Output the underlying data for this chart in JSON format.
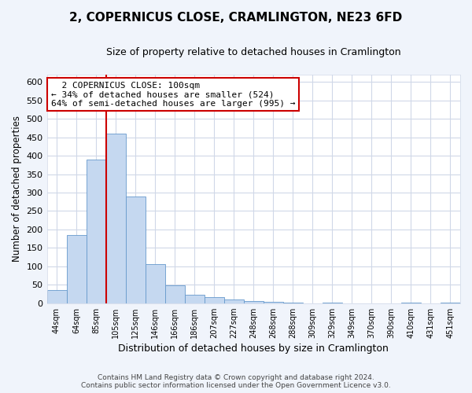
{
  "title": "2, COPERNICUS CLOSE, CRAMLINGTON, NE23 6FD",
  "subtitle": "Size of property relative to detached houses in Cramlington",
  "xlabel": "Distribution of detached houses by size in Cramlington",
  "ylabel": "Number of detached properties",
  "bin_labels": [
    "44sqm",
    "64sqm",
    "85sqm",
    "105sqm",
    "125sqm",
    "146sqm",
    "166sqm",
    "186sqm",
    "207sqm",
    "227sqm",
    "248sqm",
    "268sqm",
    "288sqm",
    "309sqm",
    "329sqm",
    "349sqm",
    "370sqm",
    "390sqm",
    "410sqm",
    "431sqm",
    "451sqm"
  ],
  "bar_heights": [
    35,
    185,
    390,
    460,
    290,
    105,
    48,
    22,
    17,
    10,
    5,
    3,
    1,
    0,
    1,
    0,
    0,
    0,
    1,
    0,
    1
  ],
  "bar_color": "#c5d8f0",
  "bar_edge_color": "#6699cc",
  "vline_x_label": "105sqm",
  "vline_color": "#cc0000",
  "annotation_title": "2 COPERNICUS CLOSE: 100sqm",
  "annotation_line1": "← 34% of detached houses are smaller (524)",
  "annotation_line2": "64% of semi-detached houses are larger (995) →",
  "annotation_box_color": "#ffffff",
  "annotation_box_edge": "#cc0000",
  "ylim": [
    0,
    620
  ],
  "yticks": [
    0,
    50,
    100,
    150,
    200,
    250,
    300,
    350,
    400,
    450,
    500,
    550,
    600
  ],
  "footer_line1": "Contains HM Land Registry data © Crown copyright and database right 2024.",
  "footer_line2": "Contains public sector information licensed under the Open Government Licence v3.0.",
  "plot_bg_color": "#ffffff",
  "fig_bg_color": "#f0f4fb",
  "grid_color": "#d0d8e8",
  "title_fontsize": 11,
  "subtitle_fontsize": 9
}
